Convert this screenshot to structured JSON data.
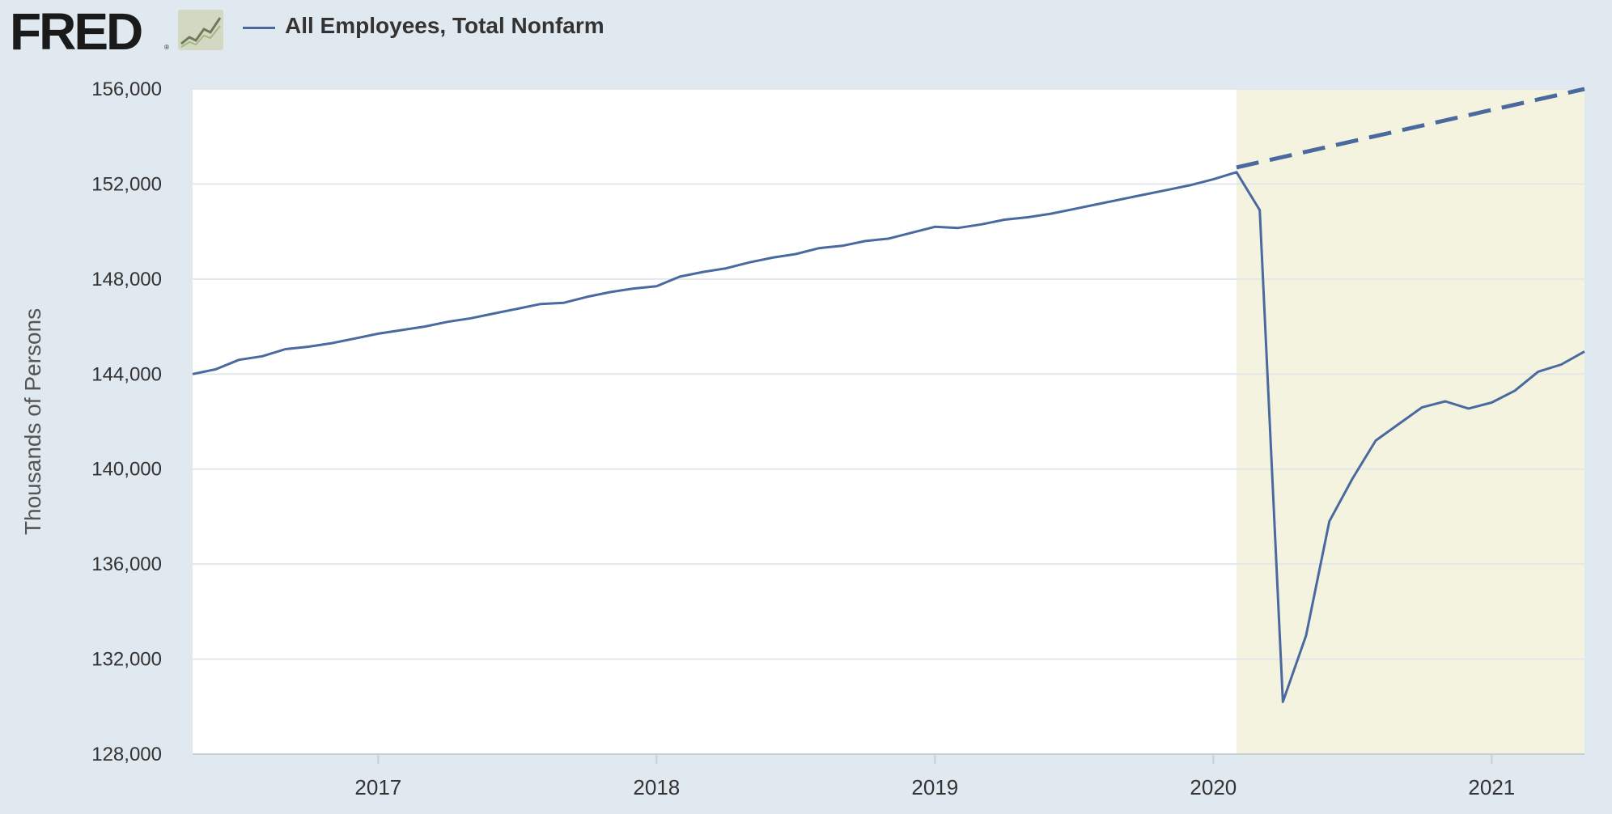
{
  "header": {
    "logo_text": "FRED",
    "logo_mark": "®",
    "logo_icon": "line-chart-icon",
    "legend_label": "All Employees, Total Nonfarm"
  },
  "colors": {
    "background": "#e1e9f0",
    "plot_background": "#ffffff",
    "recession_shading": "#f4f3df",
    "series": "#4a6a9f",
    "grid": "#e3e6ea"
  },
  "chart_data": {
    "type": "line",
    "title": "",
    "xlabel": "",
    "ylabel": "Thousands of Persons",
    "ylim": [
      128000,
      156000
    ],
    "yticks": [
      128000,
      132000,
      136000,
      140000,
      144000,
      148000,
      152000,
      156000
    ],
    "ytick_labels": [
      "128,000",
      "132,000",
      "136,000",
      "140,000",
      "144,000",
      "148,000",
      "152,000",
      "156,000"
    ],
    "xlim": [
      "2016-05",
      "2021-05"
    ],
    "xticks": [
      "2017-01",
      "2018-01",
      "2019-01",
      "2020-01",
      "2021-01"
    ],
    "xtick_labels": [
      "2017",
      "2018",
      "2019",
      "2020",
      "2021"
    ],
    "grid": true,
    "legend_position": "top-left",
    "shaded_region": {
      "start": "2020-02",
      "end": "2021-05"
    },
    "series": [
      {
        "name": "All Employees, Total Nonfarm",
        "style": "solid",
        "x": [
          "2016-05",
          "2016-06",
          "2016-07",
          "2016-08",
          "2016-09",
          "2016-10",
          "2016-11",
          "2016-12",
          "2017-01",
          "2017-02",
          "2017-03",
          "2017-04",
          "2017-05",
          "2017-06",
          "2017-07",
          "2017-08",
          "2017-09",
          "2017-10",
          "2017-11",
          "2017-12",
          "2018-01",
          "2018-02",
          "2018-03",
          "2018-04",
          "2018-05",
          "2018-06",
          "2018-07",
          "2018-08",
          "2018-09",
          "2018-10",
          "2018-11",
          "2018-12",
          "2019-01",
          "2019-02",
          "2019-03",
          "2019-04",
          "2019-05",
          "2019-06",
          "2019-07",
          "2019-08",
          "2019-09",
          "2019-10",
          "2019-11",
          "2019-12",
          "2020-01",
          "2020-02",
          "2020-03",
          "2020-04",
          "2020-05",
          "2020-06",
          "2020-07",
          "2020-08",
          "2020-09",
          "2020-10",
          "2020-11",
          "2020-12",
          "2021-01",
          "2021-02",
          "2021-03",
          "2021-04",
          "2021-05"
        ],
        "values": [
          144000,
          144200,
          144600,
          144750,
          145050,
          145150,
          145300,
          145500,
          145700,
          145850,
          146000,
          146200,
          146350,
          146550,
          146750,
          146950,
          147000,
          147250,
          147450,
          147600,
          147700,
          148100,
          148300,
          148450,
          148700,
          148900,
          149050,
          149300,
          149400,
          149600,
          149700,
          149950,
          150200,
          150150,
          150300,
          150500,
          150600,
          150750,
          150950,
          151150,
          151350,
          151550,
          151750,
          151950,
          152200,
          152500,
          150900,
          130200,
          133000,
          137800,
          139600,
          141200,
          141900,
          142600,
          142850,
          142550,
          142800,
          143300,
          144100,
          144400,
          144950
        ]
      },
      {
        "name": "",
        "style": "dashed",
        "x": [
          "2020-02",
          "2021-05"
        ],
        "values": [
          152700,
          156000
        ]
      }
    ]
  }
}
